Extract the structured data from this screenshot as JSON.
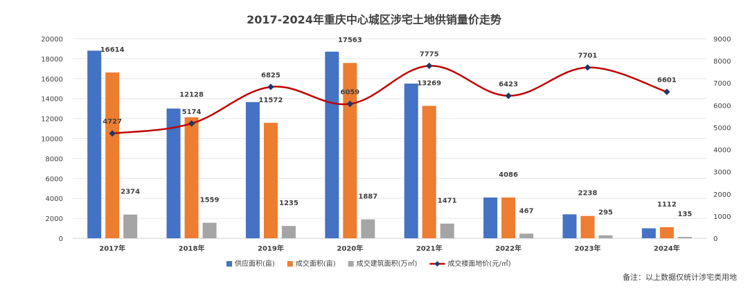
{
  "chart_data": {
    "type": "bar",
    "title": "2017-2024年重庆中心城区涉宅土地供销量价走势",
    "categories": [
      "2017年",
      "2018年",
      "2019年",
      "2020年",
      "2021年",
      "2022年",
      "2023年",
      "2024年"
    ],
    "series": [
      {
        "name": "供应面积(亩)",
        "type": "bar",
        "axis": "left",
        "color": "#4472C4",
        "values": [
          18800,
          13000,
          13650,
          18700,
          15500,
          4086,
          2400,
          1000
        ],
        "labels_shown": false
      },
      {
        "name": "成交面积(亩)",
        "type": "bar",
        "axis": "left",
        "color": "#ED7D31",
        "values": [
          16614,
          12128,
          11572,
          17563,
          13269,
          4086,
          2238,
          1112
        ],
        "labels_shown": true
      },
      {
        "name": "成交建筑面积(万㎡)",
        "type": "bar",
        "axis": "left",
        "color": "#A5A5A5",
        "values": [
          2374,
          1559,
          1235,
          1887,
          1471,
          467,
          295,
          135
        ],
        "labels_shown": true
      },
      {
        "name": "成交楼面地价(元/㎡)",
        "type": "line",
        "axis": "right",
        "color": "#C00000",
        "values": [
          4727,
          5174,
          6825,
          6059,
          7775,
          6423,
          7701,
          6601
        ],
        "labels_shown": true
      }
    ],
    "yleft": {
      "min": 0,
      "max": 20000,
      "step": 2000
    },
    "yright": {
      "min": 0,
      "max": 9000,
      "step": 1000
    },
    "legend_position": "bottom",
    "grid": true,
    "note": "备注：以上数据仅统计涉宅类用地"
  }
}
